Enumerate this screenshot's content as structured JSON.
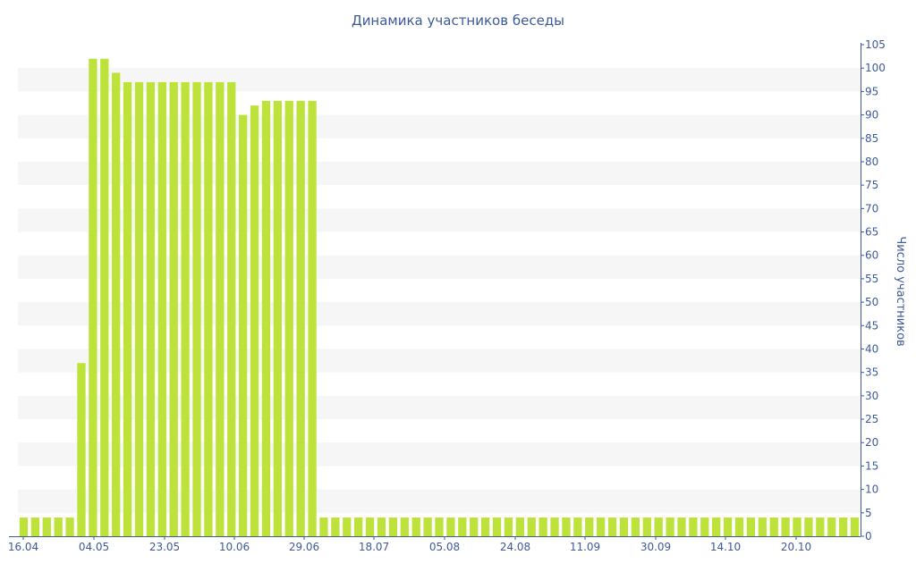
{
  "chart_data": {
    "type": "bar",
    "title": "Динамика участников беседы",
    "ylabel": "Число участников",
    "xlabel": "",
    "ylim": [
      0,
      105
    ],
    "y_ticks": [
      0,
      5,
      10,
      15,
      20,
      25,
      30,
      35,
      40,
      45,
      50,
      55,
      60,
      65,
      70,
      75,
      80,
      85,
      90,
      95,
      100,
      105
    ],
    "y_axis_position": "right",
    "grid": "alternating horizontal bands",
    "x_tick_labels": [
      "16.04",
      "04.05",
      "23.05",
      "10.06",
      "29.06",
      "18.07",
      "05.08",
      "24.08",
      "11.09",
      "30.09",
      "14.10",
      "20.10"
    ],
    "values": [
      4,
      4,
      4,
      4,
      4,
      37,
      102,
      102,
      99,
      97,
      97,
      97,
      97,
      97,
      97,
      97,
      97,
      97,
      97,
      90,
      92,
      93,
      93,
      93,
      93,
      93,
      4,
      4,
      4,
      4,
      4,
      4,
      4,
      4,
      4,
      4,
      4,
      4,
      4,
      4,
      4,
      4,
      4,
      4,
      4,
      4,
      4,
      4,
      4,
      4,
      4,
      4,
      4,
      4,
      4,
      4,
      4,
      4,
      4,
      4,
      4,
      4,
      4,
      4,
      4,
      4,
      4,
      4,
      4,
      4,
      4,
      4,
      4
    ],
    "colors": {
      "bar": "#bde23a",
      "band": "#f6f6f6",
      "text": "#3d5a99",
      "axis": "#3d5a99"
    }
  }
}
